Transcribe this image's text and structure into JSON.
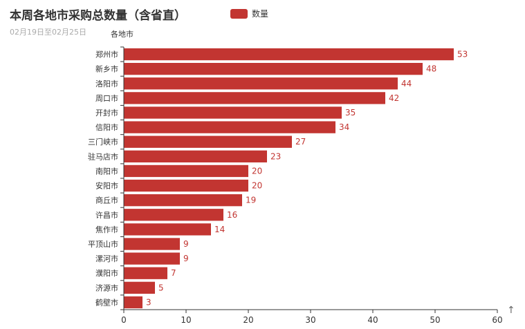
{
  "chart_data": {
    "type": "bar",
    "orientation": "horizontal",
    "title": "本周各地市采购总数量（含省直）",
    "subtitle": "02月19日至02月25日",
    "ylabel": "各地市",
    "xlabel": "",
    "xlim": [
      0,
      60
    ],
    "x_ticks": [
      0,
      10,
      20,
      30,
      40,
      50,
      60
    ],
    "categories": [
      "郑州市",
      "新乡市",
      "洛阳市",
      "周口市",
      "开封市",
      "信阳市",
      "三门峡市",
      "驻马店市",
      "南阳市",
      "安阳市",
      "商丘市",
      "许昌市",
      "焦作市",
      "平顶山市",
      "漯河市",
      "濮阳市",
      "济源市",
      "鹤壁市"
    ],
    "series": [
      {
        "name": "数量",
        "color": "#c23531",
        "values": [
          53,
          48,
          44,
          42,
          35,
          34,
          27,
          23,
          20,
          20,
          19,
          16,
          14,
          9,
          9,
          7,
          5,
          3
        ]
      }
    ],
    "grid": false,
    "legend_position": "top-center"
  },
  "toolbox": {
    "icon": "arrow-up-icon",
    "glyph": "↑"
  }
}
